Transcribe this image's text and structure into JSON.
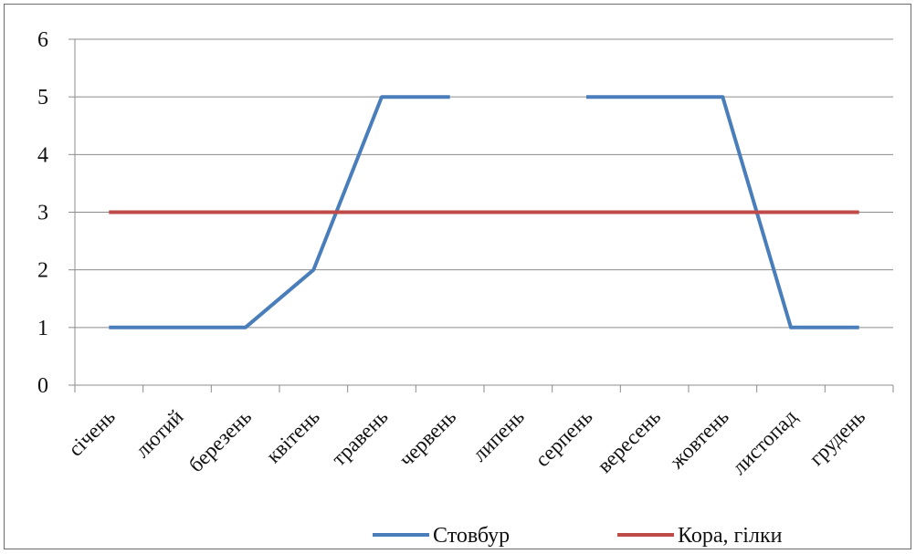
{
  "chart_data": {
    "type": "line",
    "categories": [
      "січень",
      "лютий",
      "березень",
      "квітень",
      "травень",
      "червень",
      "липень",
      "серпень",
      "вересень",
      "жовтень",
      "листопад",
      "грудень"
    ],
    "series": [
      {
        "name": "Стовбур",
        "color": "#4a7ebb",
        "values": [
          1,
          1,
          1,
          2,
          5,
          5,
          null,
          5,
          5,
          5,
          1,
          1
        ]
      },
      {
        "name": "Кора, гілки",
        "color": "#be4b48",
        "values": [
          3,
          3,
          3,
          3,
          3,
          3,
          3,
          3,
          3,
          3,
          3,
          3
        ]
      }
    ],
    "yticks": [
      "0",
      "1",
      "2",
      "3",
      "4",
      "5",
      "6"
    ],
    "ylim": [
      0,
      6
    ],
    "grid": true,
    "legend_position": "bottom"
  }
}
